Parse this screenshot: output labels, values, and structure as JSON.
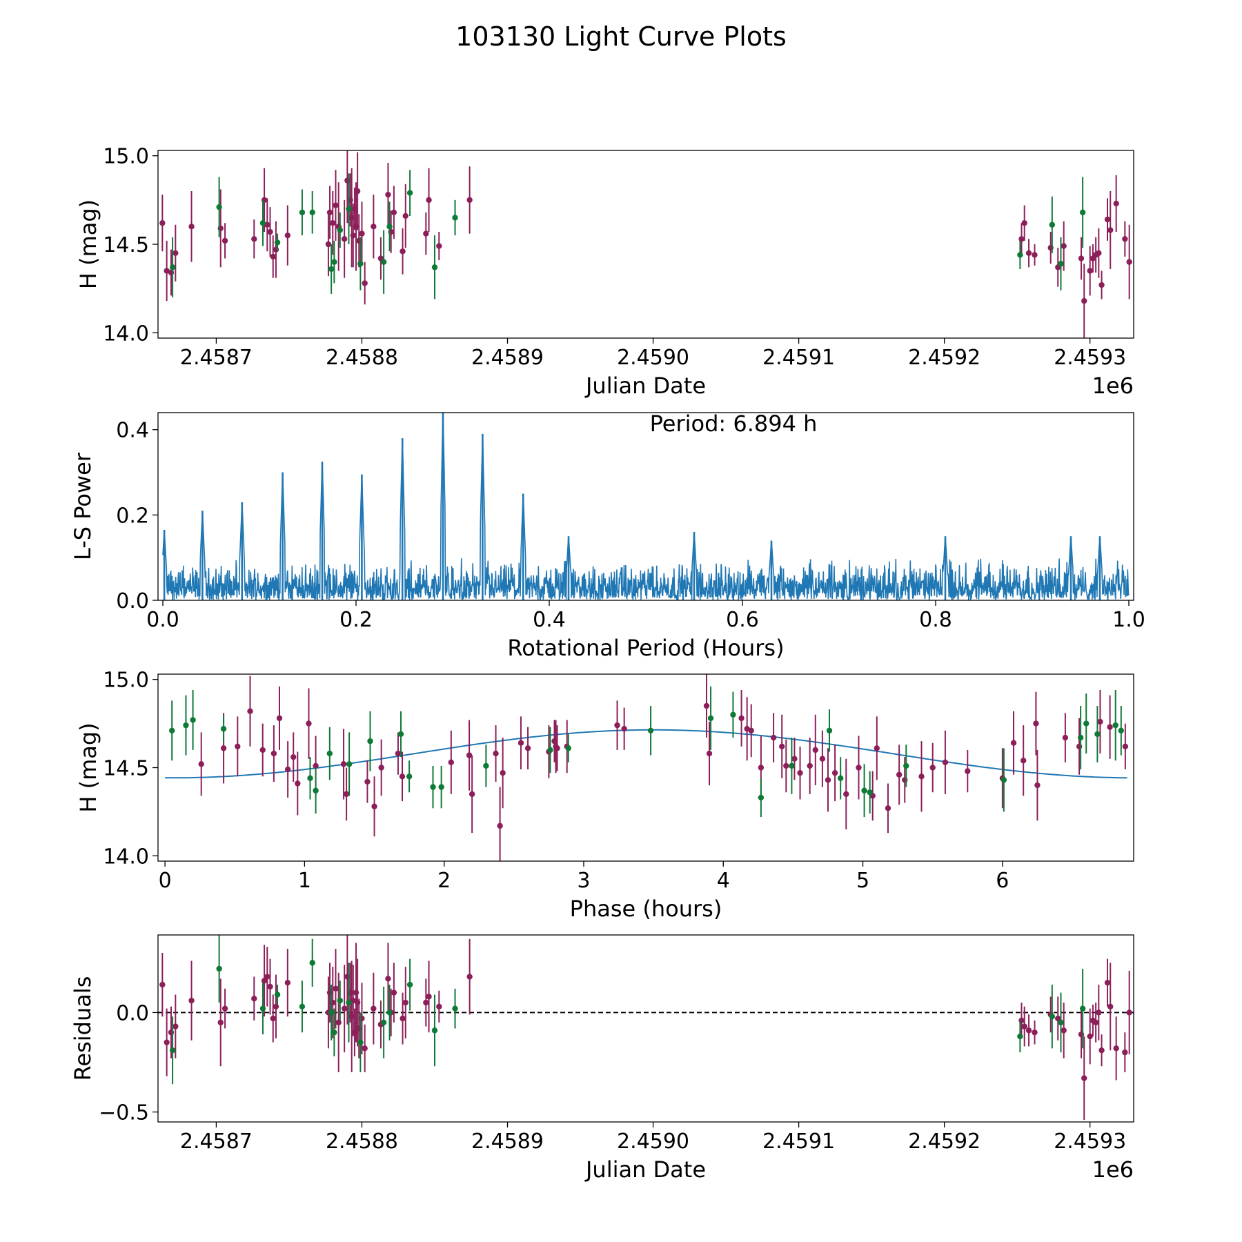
{
  "title": "103130 Light Curve Plots",
  "colors": {
    "filter_o": "#8c1f5a",
    "filter_c": "#0f7a36",
    "curve": "#1f77b4",
    "zero_line": "#000000"
  },
  "chart_data": [
    {
      "id": "lightcurve",
      "type": "scatter",
      "xlabel": "Julian Date",
      "ylabel": "H (mag)",
      "x_offset_label": "1e6",
      "xlim": [
        2.45866,
        2.45933
      ],
      "ylim": [
        13.97,
        15.03
      ],
      "xticks": [
        2.4587,
        2.4588,
        2.4589,
        2.459,
        2.4591,
        2.4592,
        2.4593
      ],
      "xtick_labels": [
        "2.4587",
        "2.4588",
        "2.4589",
        "2.4590",
        "2.4591",
        "2.4592",
        "2.4593"
      ],
      "yticks": [
        14.0,
        14.5,
        15.0
      ],
      "ytick_labels": [
        "14.0",
        "14.5",
        "15.0"
      ],
      "series": [
        {
          "name": "o",
          "color": "#8c1f5a",
          "x": [
            2.458663,
            2.458666,
            2.458669,
            2.458672,
            2.458683,
            2.458703,
            2.458706,
            2.458726,
            2.458733,
            2.458735,
            2.458737,
            2.458739,
            2.458741,
            2.458749,
            2.458777,
            2.458778,
            2.45878,
            2.458782,
            2.458784,
            2.458788,
            2.45879,
            2.458792,
            2.458793,
            2.458794,
            2.458795,
            2.458796,
            2.458797,
            2.458798,
            2.4588,
            2.458802,
            2.458808,
            2.458813,
            2.458818,
            2.45882,
            2.458822,
            2.458828,
            2.45883,
            2.458844,
            2.458846,
            2.458853,
            2.458874,
            2.459253,
            2.459255,
            2.459258,
            2.459262,
            2.459273,
            2.459278,
            2.459282,
            2.459294,
            2.459296,
            2.4593,
            2.459302,
            2.459304,
            2.459306,
            2.459308,
            2.459312,
            2.459314,
            2.459318,
            2.459324,
            2.459327
          ],
          "y": [
            14.62,
            14.35,
            14.34,
            14.45,
            14.6,
            14.59,
            14.52,
            14.53,
            14.75,
            14.61,
            14.57,
            14.43,
            14.47,
            14.55,
            14.5,
            14.68,
            14.62,
            14.72,
            14.6,
            14.53,
            14.86,
            14.75,
            14.65,
            14.55,
            14.7,
            14.6,
            14.8,
            14.52,
            14.56,
            14.28,
            14.6,
            14.42,
            14.78,
            14.57,
            14.68,
            14.46,
            14.66,
            14.56,
            14.75,
            14.49,
            14.75,
            14.53,
            14.62,
            14.45,
            14.44,
            14.48,
            14.37,
            14.49,
            14.42,
            14.18,
            14.35,
            14.42,
            14.44,
            14.45,
            14.27,
            14.64,
            14.58,
            14.73,
            14.53,
            14.4
          ],
          "err": [
            0.16,
            0.17,
            0.13,
            0.16,
            0.2,
            0.22,
            0.1,
            0.11,
            0.18,
            0.15,
            0.14,
            0.12,
            0.16,
            0.17,
            0.18,
            0.15,
            0.18,
            0.2,
            0.25,
            0.22,
            0.24,
            0.15,
            0.28,
            0.18,
            0.12,
            0.25,
            0.22,
            0.15,
            0.18,
            0.12,
            0.18,
            0.12,
            0.18,
            0.12,
            0.15,
            0.13,
            0.18,
            0.12,
            0.18,
            0.08,
            0.19,
            0.09,
            0.1,
            0.08,
            0.06,
            0.09,
            0.11,
            0.14,
            0.12,
            0.21,
            0.14,
            0.08,
            0.1,
            0.14,
            0.08,
            0.12,
            0.22,
            0.16,
            0.1,
            0.21
          ]
        },
        {
          "name": "c",
          "color": "#0f7a36",
          "x": [
            2.45867,
            2.458702,
            2.458732,
            2.458742,
            2.458759,
            2.458766,
            2.458779,
            2.458781,
            2.458785,
            2.458791,
            2.458799,
            2.458815,
            2.458819,
            2.458833,
            2.45885,
            2.458864,
            2.459252,
            2.459274,
            2.45928,
            2.459295
          ],
          "y": [
            14.37,
            14.71,
            14.62,
            14.51,
            14.68,
            14.68,
            14.36,
            14.4,
            14.58,
            14.7,
            14.39,
            14.4,
            14.6,
            14.79,
            14.37,
            14.65,
            14.44,
            14.61,
            14.39,
            14.68
          ],
          "err": [
            0.17,
            0.17,
            0.13,
            0.05,
            0.13,
            0.12,
            0.14,
            0.12,
            0.1,
            0.2,
            0.15,
            0.18,
            0.14,
            0.13,
            0.18,
            0.1,
            0.08,
            0.16,
            0.15,
            0.2
          ]
        }
      ]
    },
    {
      "id": "periodogram",
      "type": "line",
      "xlabel": "Rotational Period (Hours)",
      "ylabel": "L-S Power",
      "annotation": "Period: 6.894 h",
      "xlim": [
        -0.005,
        1.005
      ],
      "ylim": [
        0.0,
        0.44
      ],
      "xticks": [
        0.0,
        0.2,
        0.4,
        0.6,
        0.8,
        1.0
      ],
      "xtick_labels": [
        "0.0",
        "0.2",
        "0.4",
        "0.6",
        "0.8",
        "1.0"
      ],
      "yticks": [
        0.0,
        0.2,
        0.4
      ],
      "ytick_labels": [
        "0.0",
        "0.2",
        "0.4"
      ],
      "peaks": {
        "x": [
          0.0015,
          0.041,
          0.082,
          0.124,
          0.165,
          0.206,
          0.248,
          0.29,
          0.331,
          0.373,
          0.42,
          0.55,
          0.63,
          0.81,
          0.94,
          0.97
        ],
        "y": [
          0.165,
          0.21,
          0.23,
          0.3,
          0.325,
          0.295,
          0.38,
          0.44,
          0.39,
          0.25,
          0.15,
          0.16,
          0.14,
          0.15,
          0.15,
          0.15
        ]
      },
      "noise_level": 0.09
    },
    {
      "id": "phased",
      "type": "scatter",
      "xlabel": "Phase (hours)",
      "ylabel": "H (mag)",
      "xlim": [
        -0.05,
        6.94
      ],
      "ylim": [
        13.97,
        15.03
      ],
      "xticks": [
        0,
        1,
        2,
        3,
        4,
        5,
        6
      ],
      "xtick_labels": [
        "0",
        "1",
        "2",
        "3",
        "4",
        "5",
        "6"
      ],
      "yticks": [
        14.0,
        14.5,
        15.0
      ],
      "ytick_labels": [
        "14.0",
        "14.5",
        "15.0"
      ],
      "model": {
        "period": 6.894,
        "mean": 14.578,
        "amplitude": 0.136,
        "phase_of_max": 3.5
      },
      "series": [
        {
          "name": "o",
          "color": "#8c1f5a",
          "x": [
            0.26,
            0.42,
            0.52,
            0.61,
            0.7,
            0.78,
            0.82,
            0.88,
            0.92,
            0.95,
            1.03,
            1.08,
            1.28,
            1.3,
            1.45,
            1.5,
            1.55,
            1.67,
            1.7,
            2.05,
            2.18,
            2.2,
            2.37,
            2.4,
            2.42,
            2.55,
            2.6,
            2.75,
            2.79,
            2.8,
            2.81,
            2.88,
            3.24,
            3.29,
            3.88,
            3.9,
            4.13,
            4.17,
            4.2,
            4.27,
            4.36,
            4.42,
            4.45,
            4.51,
            4.55,
            4.62,
            4.66,
            4.71,
            4.75,
            4.8,
            4.88,
            4.97,
            5.07,
            5.1,
            5.18,
            5.26,
            5.3,
            5.42,
            5.5,
            5.59,
            5.75,
            6.0,
            6.08,
            6.15,
            6.24,
            6.25,
            6.45,
            6.55,
            6.7,
            6.77,
            6.88
          ],
          "x_note": "phase hours",
          "y": [
            14.52,
            14.61,
            14.62,
            14.82,
            14.6,
            14.58,
            14.78,
            14.49,
            14.56,
            14.41,
            14.75,
            14.51,
            14.52,
            14.35,
            14.42,
            14.28,
            14.5,
            14.58,
            14.45,
            14.53,
            14.57,
            14.35,
            14.58,
            14.17,
            14.47,
            14.64,
            14.61,
            14.59,
            14.65,
            14.62,
            14.61,
            14.62,
            14.74,
            14.72,
            14.85,
            14.58,
            14.78,
            14.72,
            14.71,
            14.5,
            14.67,
            14.62,
            14.51,
            14.55,
            14.47,
            14.51,
            14.6,
            14.55,
            14.43,
            14.47,
            14.35,
            14.5,
            14.34,
            14.61,
            14.27,
            14.46,
            14.43,
            14.45,
            14.5,
            14.53,
            14.48,
            14.44,
            14.64,
            14.54,
            14.75,
            14.4,
            14.67,
            14.62,
            14.76,
            14.73,
            14.62
          ],
          "err": [
            0.18,
            0.2,
            0.17,
            0.2,
            0.15,
            0.16,
            0.18,
            0.16,
            0.14,
            0.18,
            0.2,
            0.17,
            0.2,
            0.15,
            0.12,
            0.17,
            0.16,
            0.12,
            0.14,
            0.18,
            0.2,
            0.22,
            0.16,
            0.22,
            0.2,
            0.15,
            0.12,
            0.15,
            0.12,
            0.15,
            0.13,
            0.15,
            0.14,
            0.12,
            0.18,
            0.18,
            0.16,
            0.18,
            0.15,
            0.18,
            0.14,
            0.18,
            0.15,
            0.12,
            0.15,
            0.16,
            0.2,
            0.16,
            0.18,
            0.16,
            0.2,
            0.18,
            0.14,
            0.18,
            0.14,
            0.17,
            0.13,
            0.2,
            0.14,
            0.18,
            0.12,
            0.17,
            0.18,
            0.2,
            0.18,
            0.2,
            0.14,
            0.16,
            0.18,
            0.18,
            0.13
          ]
        },
        {
          "name": "c",
          "color": "#0f7a36",
          "x": [
            0.05,
            0.15,
            0.2,
            0.42,
            1.04,
            1.08,
            1.18,
            1.32,
            1.47,
            1.69,
            1.75,
            1.92,
            1.98,
            2.3,
            2.76,
            2.89,
            3.48,
            3.91,
            4.07,
            4.27,
            4.49,
            4.76,
            4.84,
            5.01,
            5.05,
            5.31,
            6.01,
            6.56,
            6.6,
            6.68,
            6.81,
            6.85
          ],
          "y": [
            14.71,
            14.74,
            14.77,
            14.72,
            14.44,
            14.37,
            14.58,
            14.52,
            14.65,
            14.69,
            14.45,
            14.39,
            14.39,
            14.51,
            14.6,
            14.61,
            14.71,
            14.78,
            14.8,
            14.33,
            14.51,
            14.71,
            14.44,
            14.37,
            14.36,
            14.51,
            14.43,
            14.67,
            14.75,
            14.69,
            14.74,
            14.71
          ],
          "err": [
            0.17,
            0.17,
            0.17,
            0.08,
            0.12,
            0.13,
            0.15,
            0.18,
            0.17,
            0.13,
            0.09,
            0.12,
            0.12,
            0.12,
            0.13,
            0.08,
            0.14,
            0.18,
            0.13,
            0.11,
            0.16,
            0.12,
            0.12,
            0.15,
            0.12,
            0.12,
            0.18,
            0.18,
            0.17,
            0.16,
            0.2,
            0.14
          ]
        }
      ]
    },
    {
      "id": "residuals",
      "type": "scatter",
      "xlabel": "Julian Date",
      "ylabel": "Residuals",
      "x_offset_label": "1e6",
      "xlim": [
        2.45866,
        2.45933
      ],
      "ylim": [
        -0.55,
        0.39
      ],
      "xticks": [
        2.4587,
        2.4588,
        2.4589,
        2.459,
        2.4591,
        2.4592,
        2.4593
      ],
      "xtick_labels": [
        "2.4587",
        "2.4588",
        "2.4589",
        "2.4590",
        "2.4591",
        "2.4592",
        "2.4593"
      ],
      "yticks": [
        -0.5,
        0.0
      ],
      "ytick_labels": [
        "−0.5",
        "0.0"
      ],
      "zero_line": 0.0,
      "series": [
        {
          "name": "o",
          "color": "#8c1f5a",
          "x": [
            2.458663,
            2.458666,
            2.458669,
            2.458672,
            2.458683,
            2.458703,
            2.458706,
            2.458726,
            2.458733,
            2.458735,
            2.458737,
            2.458739,
            2.458741,
            2.458749,
            2.458777,
            2.458778,
            2.45878,
            2.458782,
            2.458784,
            2.458788,
            2.45879,
            2.458792,
            2.458793,
            2.458794,
            2.458795,
            2.458796,
            2.458797,
            2.458798,
            2.4588,
            2.458802,
            2.458808,
            2.458813,
            2.458818,
            2.45882,
            2.458822,
            2.458828,
            2.45883,
            2.458844,
            2.458846,
            2.458853,
            2.458874,
            2.459253,
            2.459255,
            2.459258,
            2.459262,
            2.459273,
            2.459278,
            2.459282,
            2.459294,
            2.459296,
            2.4593,
            2.459302,
            2.459304,
            2.459306,
            2.459308,
            2.459312,
            2.459314,
            2.459318,
            2.459324,
            2.459327
          ],
          "y": [
            0.14,
            -0.15,
            -0.1,
            -0.07,
            0.06,
            -0.05,
            0.02,
            0.07,
            0.16,
            0.18,
            0.13,
            -0.03,
            0.03,
            0.15,
            0.0,
            0.1,
            0.05,
            0.12,
            -0.05,
            0.02,
            0.18,
            0.1,
            -0.02,
            0.06,
            -0.1,
            0.1,
            0.05,
            -0.08,
            -0.03,
            -0.18,
            0.02,
            -0.06,
            0.17,
            0.0,
            0.1,
            -0.03,
            0.05,
            0.05,
            0.08,
            0.03,
            0.18,
            -0.04,
            -0.07,
            -0.09,
            -0.1,
            -0.01,
            -0.03,
            -0.09,
            -0.11,
            -0.33,
            -0.12,
            -0.04,
            -0.05,
            0.0,
            -0.19,
            0.15,
            0.03,
            -0.18,
            -0.2,
            0.0
          ],
          "err": [
            0.16,
            0.17,
            0.13,
            0.16,
            0.2,
            0.22,
            0.1,
            0.11,
            0.18,
            0.15,
            0.14,
            0.12,
            0.16,
            0.17,
            0.18,
            0.15,
            0.18,
            0.2,
            0.25,
            0.22,
            0.24,
            0.15,
            0.28,
            0.18,
            0.12,
            0.25,
            0.22,
            0.15,
            0.18,
            0.12,
            0.18,
            0.12,
            0.18,
            0.12,
            0.15,
            0.13,
            0.18,
            0.12,
            0.18,
            0.08,
            0.19,
            0.09,
            0.1,
            0.08,
            0.06,
            0.09,
            0.11,
            0.14,
            0.12,
            0.21,
            0.14,
            0.08,
            0.1,
            0.14,
            0.08,
            0.12,
            0.22,
            0.16,
            0.1,
            0.21
          ]
        },
        {
          "name": "c",
          "color": "#0f7a36",
          "x": [
            2.45867,
            2.458702,
            2.458732,
            2.458742,
            2.458759,
            2.458766,
            2.458779,
            2.458781,
            2.458785,
            2.458791,
            2.458799,
            2.458815,
            2.458819,
            2.458833,
            2.45885,
            2.458864,
            2.459252,
            2.459274,
            2.45928,
            2.459295
          ],
          "y": [
            -0.19,
            0.22,
            0.02,
            0.09,
            0.03,
            0.25,
            0.0,
            -0.1,
            0.06,
            0.05,
            -0.15,
            -0.05,
            0.0,
            0.14,
            -0.09,
            0.02,
            -0.12,
            -0.02,
            -0.05,
            0.02
          ],
          "err": [
            0.17,
            0.17,
            0.13,
            0.05,
            0.13,
            0.12,
            0.14,
            0.12,
            0.1,
            0.2,
            0.15,
            0.18,
            0.14,
            0.13,
            0.18,
            0.1,
            0.08,
            0.16,
            0.15,
            0.2
          ]
        }
      ]
    }
  ]
}
